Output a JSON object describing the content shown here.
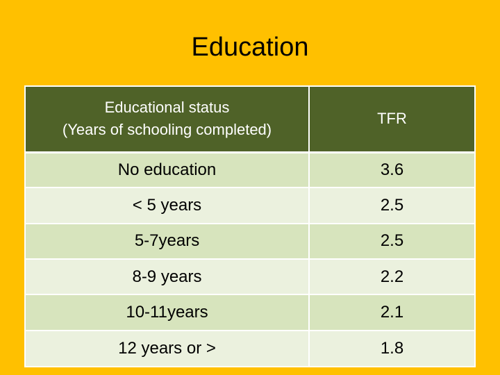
{
  "title": "Education",
  "table": {
    "headers": {
      "col1_line1": "Educational status",
      "col1_line2": "(Years of schooling completed)",
      "col2": "TFR"
    },
    "rows": [
      {
        "status": "No education",
        "tfr": "3.6"
      },
      {
        "status": "< 5 years",
        "tfr": "2.5"
      },
      {
        "status": "5-7years",
        "tfr": "2.5"
      },
      {
        "status": "8-9 years",
        "tfr": "2.2"
      },
      {
        "status": "10-11years",
        "tfr": "2.1"
      },
      {
        "status": "12 years or >",
        "tfr": "1.8"
      }
    ]
  },
  "colors": {
    "background": "#FFC000",
    "header": "#4F6228",
    "row_odd": "#D7E4BD",
    "row_even": "#EBF1DE"
  }
}
